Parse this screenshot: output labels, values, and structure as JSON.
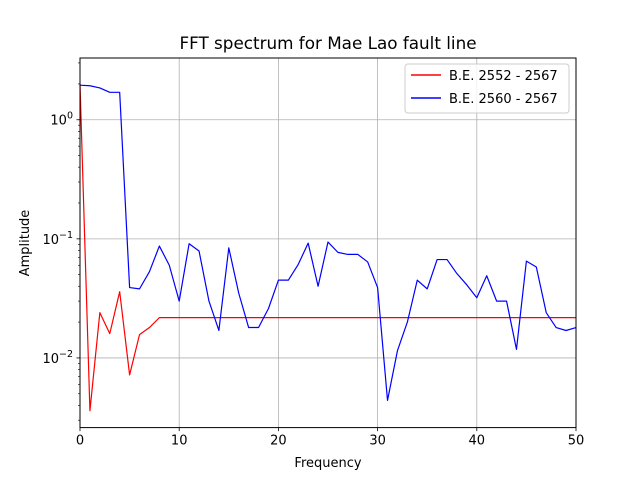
{
  "chart_data": {
    "type": "line",
    "title": "FFT spectrum for Mae Lao fault line",
    "xlabel": "Frequency",
    "ylabel": "Amplitude",
    "xlim": [
      0,
      50
    ],
    "ylim": [
      0.0026,
      3.3
    ],
    "yscale": "log",
    "grid": true,
    "legend_position": "top-right",
    "xticks": [
      0,
      10,
      20,
      30,
      40,
      50
    ],
    "xtick_labels": [
      "0",
      "10",
      "20",
      "30",
      "40",
      "50"
    ],
    "yticks": [
      0.01,
      0.1,
      1
    ],
    "ytick_labels": [
      {
        "base": "10",
        "exp": "−2"
      },
      {
        "base": "10",
        "exp": "−1"
      },
      {
        "base": "10",
        "exp": "0"
      }
    ],
    "x": [
      0,
      1,
      2,
      3,
      4,
      5,
      6,
      7,
      8,
      9,
      10,
      11,
      12,
      13,
      14,
      15,
      16,
      17,
      18,
      19,
      20,
      21,
      22,
      23,
      24,
      25,
      26,
      27,
      28,
      29,
      30,
      31,
      32,
      33,
      34,
      35,
      36,
      37,
      38,
      39,
      40,
      41,
      42,
      43,
      44,
      45,
      46,
      47,
      48,
      49,
      50
    ],
    "series": [
      {
        "name": "B.E. 2552 - 2567",
        "color": "#ff0000",
        "values": [
          2.0,
          0.0036,
          0.024,
          0.016,
          0.036,
          0.0072,
          0.0157,
          0.018,
          0.0218,
          0.0218,
          0.0218,
          0.0218,
          0.0218,
          0.0218,
          0.0218,
          0.0218,
          0.0218,
          0.0218,
          0.0218,
          0.0218,
          0.0218,
          0.0218,
          0.0218,
          0.0218,
          0.0218,
          0.0218,
          0.0218,
          0.0218,
          0.0218,
          0.0218,
          0.0218,
          0.0218,
          0.0218,
          0.0218,
          0.0218,
          0.0218,
          0.0218,
          0.0218,
          0.0218,
          0.0218,
          0.0218,
          0.0218,
          0.0218,
          0.0218,
          0.0218,
          0.0218,
          0.0218,
          0.0218,
          0.0218,
          0.0218,
          0.0218
        ]
      },
      {
        "name": "B.E. 2560 - 2567",
        "color": "#0000ff",
        "values": [
          1.95,
          1.93,
          1.85,
          1.7,
          1.7,
          0.039,
          0.038,
          0.053,
          0.087,
          0.06,
          0.03,
          0.091,
          0.079,
          0.03,
          0.017,
          0.084,
          0.035,
          0.018,
          0.018,
          0.026,
          0.045,
          0.045,
          0.061,
          0.092,
          0.04,
          0.094,
          0.077,
          0.074,
          0.074,
          0.064,
          0.039,
          0.0044,
          0.0115,
          0.02,
          0.045,
          0.038,
          0.067,
          0.067,
          0.051,
          0.041,
          0.032,
          0.049,
          0.03,
          0.03,
          0.0118,
          0.065,
          0.058,
          0.024,
          0.018,
          0.017,
          0.018
        ]
      }
    ]
  }
}
